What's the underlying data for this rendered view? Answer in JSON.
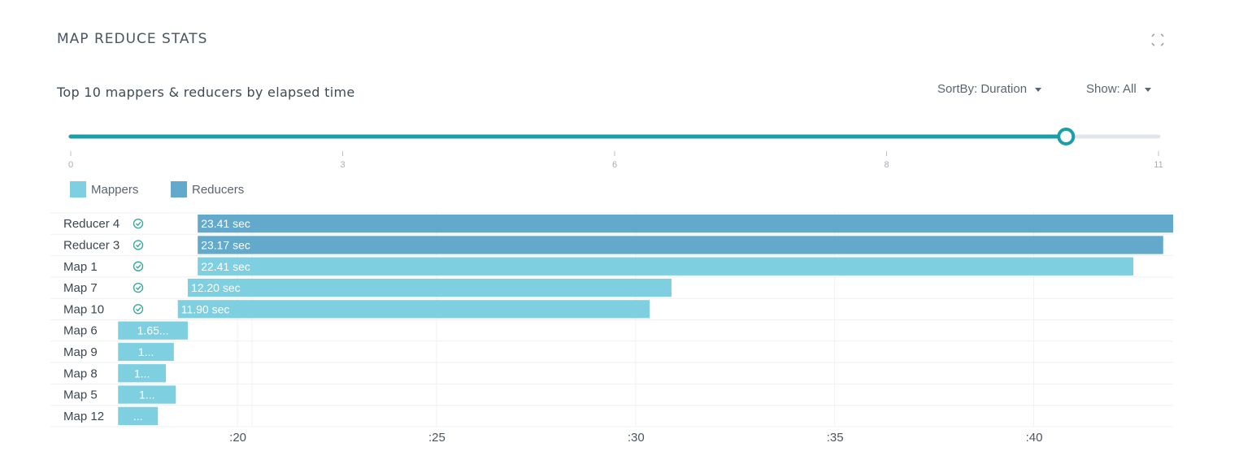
{
  "header": {
    "title": "MAP REDUCE STATS",
    "subtitle": "Top 10 mappers & reducers by elapsed time"
  },
  "controls": {
    "sort_label": "SortBy: Duration",
    "show_label": "Show: All"
  },
  "slider": {
    "ticks": [
      "0",
      "3",
      "6",
      "8",
      "11"
    ],
    "value_fraction": 0.915
  },
  "colors": {
    "mapper": "#7ecfe0",
    "reducer": "#62a9cb",
    "accent": "#1a9ea8",
    "status": "#3aa89a"
  },
  "legend": {
    "mappers": "Mappers",
    "reducers": "Reducers"
  },
  "chart_data": {
    "type": "bar",
    "orientation": "horizontal",
    "x_axis": {
      "ticks": [
        ":20",
        ":25",
        ":30",
        ":35",
        ":40"
      ],
      "tick_values": [
        20,
        25,
        30,
        35,
        40
      ],
      "range": [
        15.3,
        43.5
      ]
    },
    "grid": true,
    "legend_position": "top-left",
    "rows": [
      {
        "label": "Reducer 4",
        "kind": "reducer",
        "start": 19.0,
        "end": 43.5,
        "text": "23.41 sec"
      },
      {
        "label": "Reducer 3",
        "kind": "reducer",
        "start": 19.0,
        "end": 43.25,
        "text": "23.17 sec"
      },
      {
        "label": "Map 1",
        "kind": "mapper",
        "start": 19.0,
        "end": 42.5,
        "text": "22.41 sec"
      },
      {
        "label": "Map 7",
        "kind": "mapper",
        "start": 18.75,
        "end": 30.9,
        "text": "12.20 sec"
      },
      {
        "label": "Map 10",
        "kind": "mapper",
        "start": 18.5,
        "end": 30.35,
        "text": "11.90 sec"
      },
      {
        "label": "Map 6",
        "kind": "mapper",
        "start": 17.0,
        "end": 18.75,
        "text": "1.65..."
      },
      {
        "label": "Map 9",
        "kind": "mapper",
        "start": 17.0,
        "end": 18.4,
        "text": "1..."
      },
      {
        "label": "Map 8",
        "kind": "mapper",
        "start": 17.0,
        "end": 18.2,
        "text": "1..."
      },
      {
        "label": "Map 5",
        "kind": "mapper",
        "start": 17.0,
        "end": 18.45,
        "text": "1..."
      },
      {
        "label": "Map 12",
        "kind": "mapper",
        "start": 17.0,
        "end": 18.0,
        "text": "..."
      }
    ]
  }
}
